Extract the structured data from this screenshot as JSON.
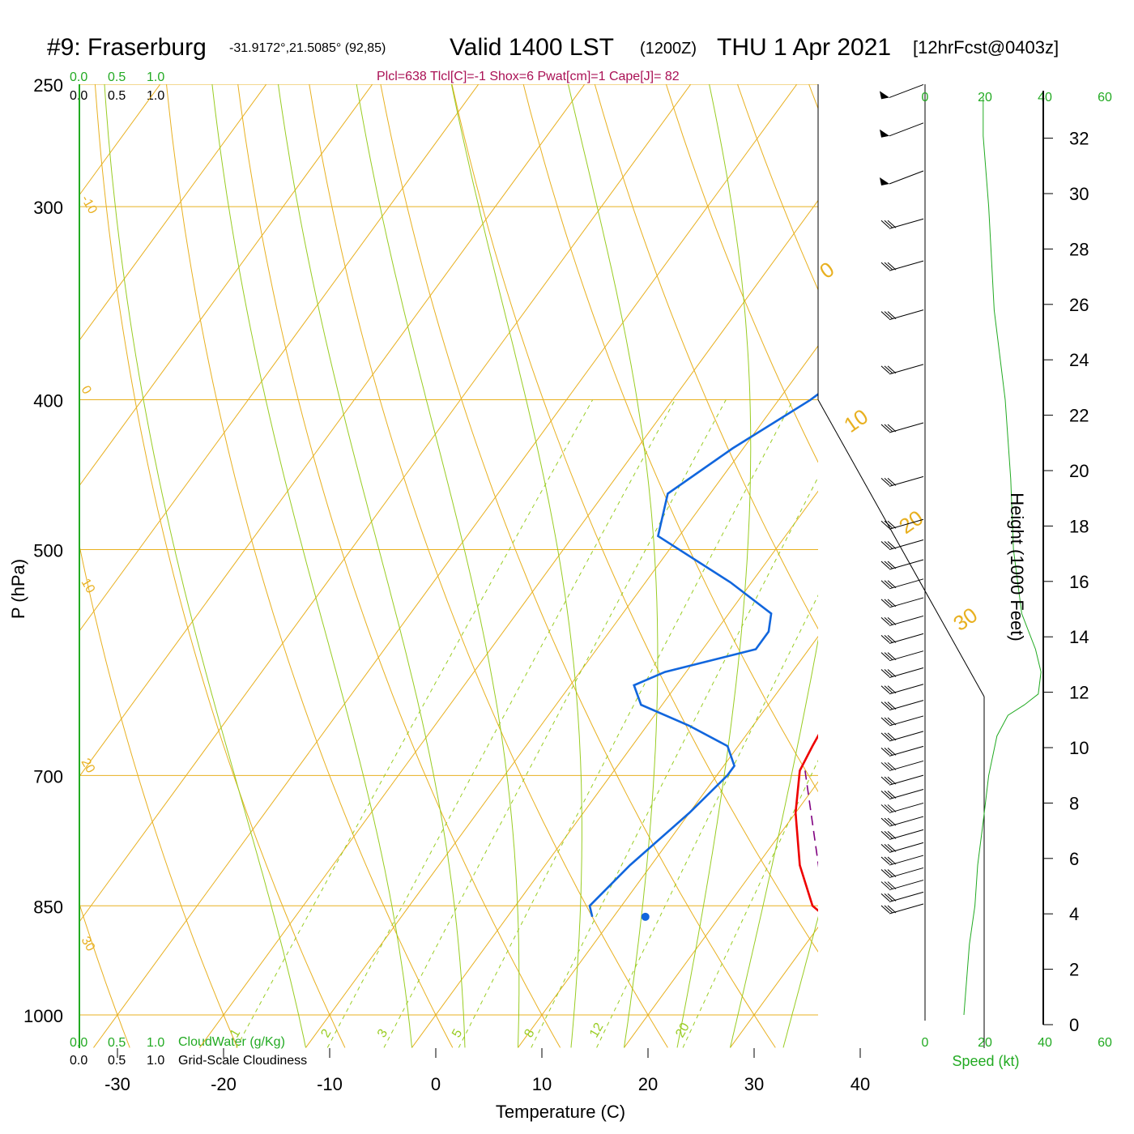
{
  "header": {
    "station": "#9: Fraserburg",
    "coords": "-31.9172°,21.5085° (92,85)",
    "valid": "Valid 1400 LST",
    "zulu": "(1200Z)",
    "date": "THU 1 Apr 2021",
    "forecast": "[12hrFcst@0403z]",
    "indices": "Plcl=638 Tlcl[C]=-1 Shox=6 Pwat[cm]=1 Cape[J]= 82"
  },
  "chart_data": {
    "type": "line",
    "xlabel": "Temperature (C)",
    "ylabel": "P (hPa)",
    "xlim": [
      -34,
      36
    ],
    "ylim": [
      1030,
      250
    ],
    "x_ticks": [
      -30,
      -20,
      -10,
      0,
      10,
      20,
      30,
      40
    ],
    "p_ticks": [
      250,
      300,
      400,
      500,
      700,
      850,
      1000
    ],
    "p_ticks_labels": [
      "250",
      "300",
      "400",
      "500",
      "700",
      "850",
      "1000"
    ],
    "isotherm_labels": [
      "-30",
      "-20",
      "-10",
      "0",
      "10",
      "20",
      "30",
      "40"
    ],
    "dry_adiabat_labels": [
      "30",
      "20",
      "10",
      "0",
      "-10",
      "0",
      "10",
      "20",
      "30"
    ],
    "mixing_ratio_labels": [
      "1",
      "2",
      "3",
      "5",
      "8",
      "12",
      "20"
    ],
    "mixing_ratio_values": [
      1,
      2,
      3,
      5,
      8,
      12,
      20
    ],
    "cloud_scale_top": [
      "0.0",
      "0.5",
      "1.0"
    ],
    "cloud_scale_top2": [
      "0.0",
      "0.5",
      "1.0"
    ],
    "cloud_scale_bottom": [
      "0.0",
      "0.5",
      "1.0"
    ],
    "cloud_scale_bottom2": [
      "0.0",
      "0.5",
      "1.0"
    ],
    "cloudwater_label": "CloudWater (g/Kg)",
    "cloudiness_label": "Grid-Scale Cloudiness",
    "speed_label": "Speed (kt)",
    "speed_ticks_labels": [
      "0",
      "20",
      "40",
      "60"
    ],
    "height_label": "Height (1000 Feet)",
    "height_ticks": [
      0,
      2,
      4,
      6,
      8,
      10,
      12,
      14,
      16,
      18,
      20,
      22,
      24,
      26,
      28,
      30,
      32
    ],
    "series": [
      {
        "name": "Temperature",
        "color": "#ee0000",
        "points": [
          [
            30,
            864
          ],
          [
            28,
            850
          ],
          [
            24,
            800
          ],
          [
            20,
            740
          ],
          [
            17.5,
            695
          ],
          [
            17,
            670
          ],
          [
            16.5,
            640
          ],
          [
            15,
            600
          ],
          [
            15,
            560
          ],
          [
            14.5,
            510
          ],
          [
            14.5,
            495
          ],
          [
            13,
            450
          ],
          [
            11,
            410
          ],
          [
            8,
            370
          ],
          [
            4,
            330
          ],
          [
            0,
            300
          ],
          [
            -3,
            270
          ],
          [
            -4,
            255
          ]
        ]
      },
      {
        "name": "Dewpoint",
        "color": "#1166dd",
        "points": [
          [
            8,
            864
          ],
          [
            7,
            850
          ],
          [
            8,
            800
          ],
          [
            10,
            740
          ],
          [
            11,
            700
          ],
          [
            11,
            690
          ],
          [
            9,
            670
          ],
          [
            4,
            650
          ],
          [
            -2,
            630
          ],
          [
            -4,
            612
          ],
          [
            -2,
            600
          ],
          [
            5,
            580
          ],
          [
            5,
            565
          ],
          [
            4,
            550
          ],
          [
            -2,
            525
          ],
          [
            -12,
            490
          ],
          [
            -14,
            460
          ],
          [
            -11,
            430
          ],
          [
            -7,
            400
          ],
          [
            -4,
            370
          ],
          [
            -3,
            350
          ],
          [
            -3,
            330
          ],
          [
            -4,
            310
          ],
          [
            -6,
            290
          ],
          [
            -8,
            270
          ],
          [
            -10,
            255
          ]
        ]
      },
      {
        "name": "Parcel",
        "color": "#800080",
        "dash": true,
        "points": [
          [
            30,
            864
          ],
          [
            18,
            695
          ]
        ]
      }
    ],
    "surface_temp_marker": [
      31,
      864
    ],
    "surface_dew_marker": [
      13,
      864
    ],
    "speed_profile_kt": [
      [
        1000,
        0
      ],
      [
        900,
        2
      ],
      [
        850,
        4
      ],
      [
        800,
        5
      ],
      [
        750,
        7
      ],
      [
        700,
        9
      ],
      [
        660,
        12
      ],
      [
        640,
        16
      ],
      [
        630,
        22
      ],
      [
        620,
        27
      ],
      [
        600,
        28
      ],
      [
        580,
        26
      ],
      [
        550,
        21
      ],
      [
        500,
        18
      ],
      [
        450,
        17
      ],
      [
        400,
        15
      ],
      [
        350,
        11
      ],
      [
        300,
        9
      ],
      [
        270,
        7
      ],
      [
        255,
        7
      ]
    ]
  }
}
